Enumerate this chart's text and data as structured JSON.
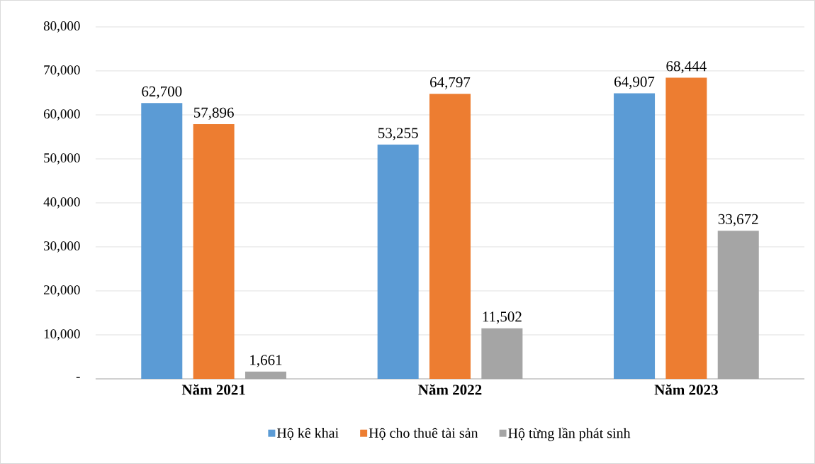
{
  "chart_data": {
    "type": "bar",
    "categories": [
      "Năm 2021",
      "Năm 2022",
      "Năm 2023"
    ],
    "series": [
      {
        "name": "Hộ kê khai",
        "color": "#5b9bd5",
        "values": [
          62700,
          53255,
          64907
        ],
        "value_labels": [
          "62,700",
          "53,255",
          "64,907"
        ]
      },
      {
        "name": "Hộ cho thuê tài sản",
        "color": "#ed7d31",
        "values": [
          57896,
          64797,
          68444
        ],
        "value_labels": [
          "57,896",
          "64,797",
          "68,444"
        ]
      },
      {
        "name": "Hộ từng lần phát sinh",
        "color": "#a5a5a5",
        "values": [
          1661,
          11502,
          33672
        ],
        "value_labels": [
          "1,661",
          "11,502",
          "33,672"
        ]
      }
    ],
    "ylim": [
      0,
      80000
    ],
    "yticks": [
      {
        "value": 0,
        "label": "-"
      },
      {
        "value": 10000,
        "label": "10,000"
      },
      {
        "value": 20000,
        "label": "20,000"
      },
      {
        "value": 30000,
        "label": "30,000"
      },
      {
        "value": 40000,
        "label": "40,000"
      },
      {
        "value": 50000,
        "label": "50,000"
      },
      {
        "value": 60000,
        "label": "60,000"
      },
      {
        "value": 70000,
        "label": "70,000"
      },
      {
        "value": 80000,
        "label": "80,000"
      }
    ],
    "grid": "y",
    "legend": "bottom"
  }
}
